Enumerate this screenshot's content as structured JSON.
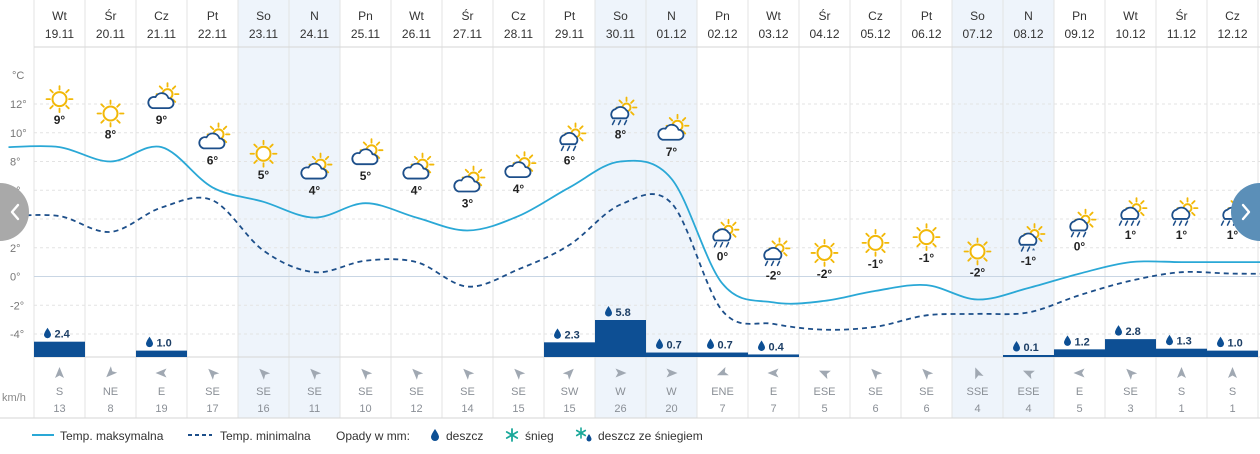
{
  "units": {
    "temperature": "°C",
    "wind": "km/h"
  },
  "chart_data": {
    "type": "line",
    "days": [
      {
        "dow": "Wt",
        "date": "19.11",
        "weekend": false,
        "icon": "sun",
        "label": "9°",
        "max": 9,
        "min": 4.2,
        "precip": 2.4,
        "precip_label": "2.4",
        "dir": "S",
        "speed": "13",
        "rot": 0
      },
      {
        "dow": "Śr",
        "date": "20.11",
        "weekend": false,
        "icon": "sun",
        "label": "8°",
        "max": 8,
        "min": 3.1,
        "precip": 0,
        "precip_label": "",
        "dir": "NE",
        "speed": "8",
        "rot": 225
      },
      {
        "dow": "Cz",
        "date": "21.11",
        "weekend": false,
        "icon": "partly-cloudy",
        "label": "9°",
        "max": 9,
        "min": 4.8,
        "precip": 1.0,
        "precip_label": "1.0",
        "dir": "E",
        "speed": "19",
        "rot": 270
      },
      {
        "dow": "Pt",
        "date": "22.11",
        "weekend": false,
        "icon": "partly-cloudy",
        "label": "6°",
        "max": 6.2,
        "min": 5.3,
        "precip": 0,
        "precip_label": "",
        "dir": "SE",
        "speed": "17",
        "rot": 315
      },
      {
        "dow": "So",
        "date": "23.11",
        "weekend": true,
        "icon": "sun",
        "label": "5°",
        "max": 5.2,
        "min": 1.8,
        "precip": 0,
        "precip_label": "",
        "dir": "SE",
        "speed": "16",
        "rot": 315
      },
      {
        "dow": "N",
        "date": "24.11",
        "weekend": true,
        "icon": "partly-cloudy",
        "label": "4°",
        "max": 4.1,
        "min": 0.3,
        "precip": 0,
        "precip_label": "",
        "dir": "SE",
        "speed": "11",
        "rot": 315
      },
      {
        "dow": "Pn",
        "date": "25.11",
        "weekend": false,
        "icon": "partly-cloudy",
        "label": "5°",
        "max": 5.1,
        "min": 1.1,
        "precip": 0,
        "precip_label": "",
        "dir": "SE",
        "speed": "10",
        "rot": 315
      },
      {
        "dow": "Wt",
        "date": "26.11",
        "weekend": false,
        "icon": "partly-cloudy",
        "label": "4°",
        "max": 4.1,
        "min": 1.0,
        "precip": 0,
        "precip_label": "",
        "dir": "SE",
        "speed": "12",
        "rot": 315
      },
      {
        "dow": "Śr",
        "date": "27.11",
        "weekend": false,
        "icon": "partly-cloudy",
        "label": "3°",
        "max": 3.2,
        "min": -0.7,
        "precip": 0,
        "precip_label": "",
        "dir": "SE",
        "speed": "14",
        "rot": 315
      },
      {
        "dow": "Cz",
        "date": "28.11",
        "weekend": false,
        "icon": "partly-cloudy",
        "label": "4°",
        "max": 4.2,
        "min": 0.5,
        "precip": 0,
        "precip_label": "",
        "dir": "SE",
        "speed": "15",
        "rot": 315
      },
      {
        "dow": "Pt",
        "date": "29.11",
        "weekend": false,
        "icon": "rain",
        "label": "6°",
        "max": 6.2,
        "min": 2.2,
        "precip": 2.3,
        "precip_label": "2.3",
        "dir": "SW",
        "speed": "15",
        "rot": 45
      },
      {
        "dow": "So",
        "date": "30.11",
        "weekend": true,
        "icon": "rain",
        "label": "8°",
        "max": 8,
        "min": 5.0,
        "precip": 5.8,
        "precip_label": "5.8",
        "dir": "W",
        "speed": "26",
        "rot": 90
      },
      {
        "dow": "N",
        "date": "01.12",
        "weekend": true,
        "icon": "partly-cloudy",
        "label": "7°",
        "max": 6.8,
        "min": 5.1,
        "precip": 0.7,
        "precip_label": "0.7",
        "dir": "W",
        "speed": "20",
        "rot": 90
      },
      {
        "dow": "Pn",
        "date": "02.12",
        "weekend": false,
        "icon": "rain",
        "label": "0°",
        "max": -0.5,
        "min": -2.4,
        "precip": 0.7,
        "precip_label": "0.7",
        "dir": "ENE",
        "speed": "7",
        "rot": 248
      },
      {
        "dow": "Wt",
        "date": "03.12",
        "weekend": false,
        "icon": "rain",
        "label": "-2°",
        "max": -1.8,
        "min": -3.3,
        "precip": 0.4,
        "precip_label": "0.4",
        "dir": "E",
        "speed": "7",
        "rot": 270
      },
      {
        "dow": "Śr",
        "date": "04.12",
        "weekend": false,
        "icon": "sun",
        "label": "-2°",
        "max": -1.7,
        "min": -3.7,
        "precip": 0,
        "precip_label": "",
        "dir": "ESE",
        "speed": "5",
        "rot": 293
      },
      {
        "dow": "Cz",
        "date": "05.12",
        "weekend": false,
        "icon": "sun",
        "label": "-1°",
        "max": -1.0,
        "min": -3.5,
        "precip": 0,
        "precip_label": "",
        "dir": "SE",
        "speed": "6",
        "rot": 315
      },
      {
        "dow": "Pt",
        "date": "06.12",
        "weekend": false,
        "icon": "sun",
        "label": "-1°",
        "max": -0.6,
        "min": -2.7,
        "precip": 0,
        "precip_label": "",
        "dir": "SE",
        "speed": "6",
        "rot": 315
      },
      {
        "dow": "So",
        "date": "07.12",
        "weekend": true,
        "icon": "sun",
        "label": "-2°",
        "max": -1.6,
        "min": -2.6,
        "precip": 0,
        "precip_label": "",
        "dir": "SSE",
        "speed": "4",
        "rot": 338
      },
      {
        "dow": "N",
        "date": "08.12",
        "weekend": true,
        "icon": "snow-rain",
        "label": "-1°",
        "max": -0.8,
        "min": -2.5,
        "precip": 0.1,
        "precip_label": "0.1",
        "dir": "ESE",
        "speed": "4",
        "rot": 293
      },
      {
        "dow": "Pn",
        "date": "09.12",
        "weekend": false,
        "icon": "rain",
        "label": "0°",
        "max": 0.2,
        "min": -1.3,
        "precip": 1.2,
        "precip_label": "1.2",
        "dir": "E",
        "speed": "5",
        "rot": 270
      },
      {
        "dow": "Wt",
        "date": "10.12",
        "weekend": false,
        "icon": "heavy-rain",
        "label": "1°",
        "max": 1.0,
        "min": -0.3,
        "precip": 2.8,
        "precip_label": "2.8",
        "dir": "SE",
        "speed": "3",
        "rot": 315
      },
      {
        "dow": "Śr",
        "date": "11.12",
        "weekend": false,
        "icon": "rain",
        "label": "1°",
        "max": 1.0,
        "min": 0.3,
        "precip": 1.3,
        "precip_label": "1.3",
        "dir": "S",
        "speed": "1",
        "rot": 0
      },
      {
        "dow": "Cz",
        "date": "12.12",
        "weekend": false,
        "icon": "heavy-rain",
        "label": "1°",
        "max": 1.0,
        "min": 0.2,
        "precip": 1.0,
        "precip_label": "1.0",
        "dir": "S",
        "speed": "1",
        "rot": 0
      }
    ],
    "y_ticks": [
      "12°",
      "10°",
      "8°",
      "6°",
      "4°",
      "2°",
      "0°",
      "-2°",
      "-4°"
    ],
    "y_tick_values": [
      12,
      10,
      8,
      6,
      4,
      2,
      0,
      -2,
      -4
    ],
    "ylim": [
      -4,
      12
    ],
    "precip_max": 5.8,
    "grid": true
  },
  "legend": {
    "max_label": "Temp. maksymalna",
    "min_label": "Temp. minimalna",
    "precip_label": "Opady w mm:",
    "rain_label": "deszcz",
    "snow_label": "śnieg",
    "sleet_label": "deszcz ze śniegiem"
  },
  "colors": {
    "max_line": "#2aa8d6",
    "min_line": "#1d4f8a",
    "precip": "#0d4f94",
    "weekend": "#eef4fb",
    "grid": "#e3e3e3",
    "sun": "#f2b807",
    "cloud": "#1d4f8a",
    "wind": "#a0a8b2"
  }
}
